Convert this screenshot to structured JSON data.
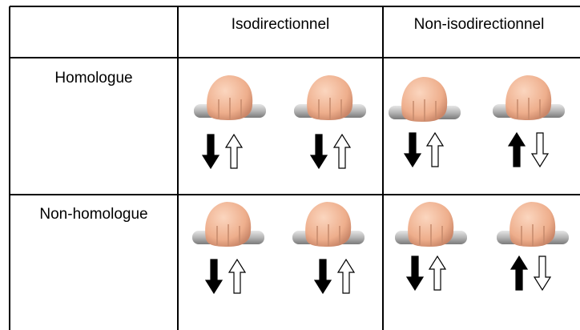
{
  "table": {
    "header": [
      "Isodirectionnel",
      "Non-isodirectionnel"
    ],
    "rows": [
      "Homologue",
      "Non-homologue"
    ]
  }
}
